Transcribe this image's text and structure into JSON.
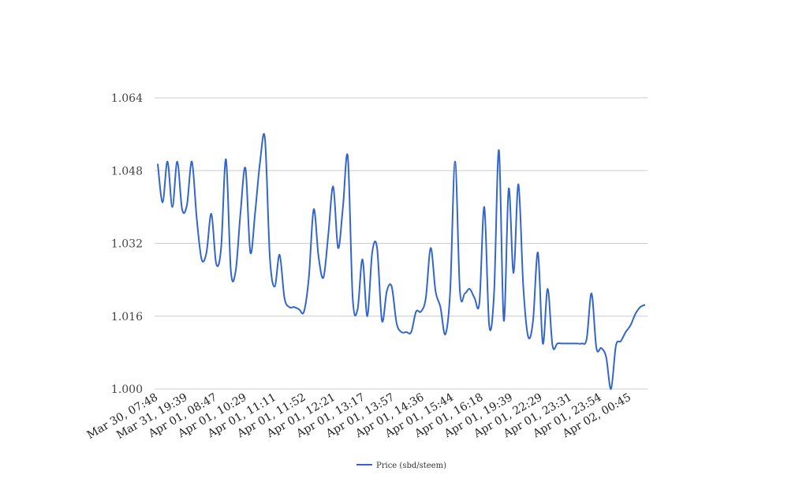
{
  "chart_data": {
    "type": "line",
    "title": "",
    "xlabel": "",
    "ylabel": "",
    "ylim": [
      1.0,
      1.064
    ],
    "yticks": [
      "1.000",
      "1.016",
      "1.032",
      "1.048",
      "1.064"
    ],
    "xtick_labels": [
      "Mar 30, 07:48",
      "Mar 31, 19:39",
      "Apr 01, 08:47",
      "Apr 01, 10:29",
      "Apr 01, 11:11",
      "Apr 01, 11:52",
      "Apr 01, 12:21",
      "Apr 01, 13:17",
      "Apr 01, 13:57",
      "Apr 01, 14:36",
      "Apr 01, 15:44",
      "Apr 01, 16:18",
      "Apr 01, 19:39",
      "Apr 01, 22:29",
      "Apr 01, 23:31",
      "Apr 01, 23:54",
      "Apr 02, 00:45"
    ],
    "grid": true,
    "legend_position": "bottom",
    "series": [
      {
        "name": "Price (sbd/steem)",
        "color": "#3366cc",
        "values": [
          1.0495,
          1.041,
          1.05,
          1.04,
          1.05,
          1.0395,
          1.0405,
          1.05,
          1.0375,
          1.0285,
          1.03,
          1.0385,
          1.0275,
          1.031,
          1.0505,
          1.026,
          1.026,
          1.039,
          1.0485,
          1.03,
          1.039,
          1.05,
          1.055,
          1.029,
          1.0225,
          1.0295,
          1.02,
          1.018,
          1.018,
          1.0175,
          1.017,
          1.0245,
          1.0395,
          1.029,
          1.0245,
          1.034,
          1.0445,
          1.031,
          1.04,
          1.051,
          1.02,
          1.0175,
          1.0285,
          1.016,
          1.03,
          1.031,
          1.015,
          1.0215,
          1.0225,
          1.0145,
          1.0125,
          1.0125,
          1.0125,
          1.017,
          1.017,
          1.02,
          1.031,
          1.0215,
          1.018,
          1.012,
          1.0215,
          1.05,
          1.0215,
          1.021,
          1.022,
          1.02,
          1.019,
          1.04,
          1.014,
          1.021,
          1.0525,
          1.015,
          1.044,
          1.0255,
          1.045,
          1.0225,
          1.0115,
          1.015,
          1.03,
          1.01,
          1.022,
          1.0095,
          1.01,
          1.01,
          1.01,
          1.01,
          1.01,
          1.01,
          1.011,
          1.021,
          1.009,
          1.009,
          1.007,
          1.0,
          1.0095,
          1.0105,
          1.0125,
          1.014,
          1.0165,
          1.018,
          1.0185
        ]
      }
    ]
  }
}
